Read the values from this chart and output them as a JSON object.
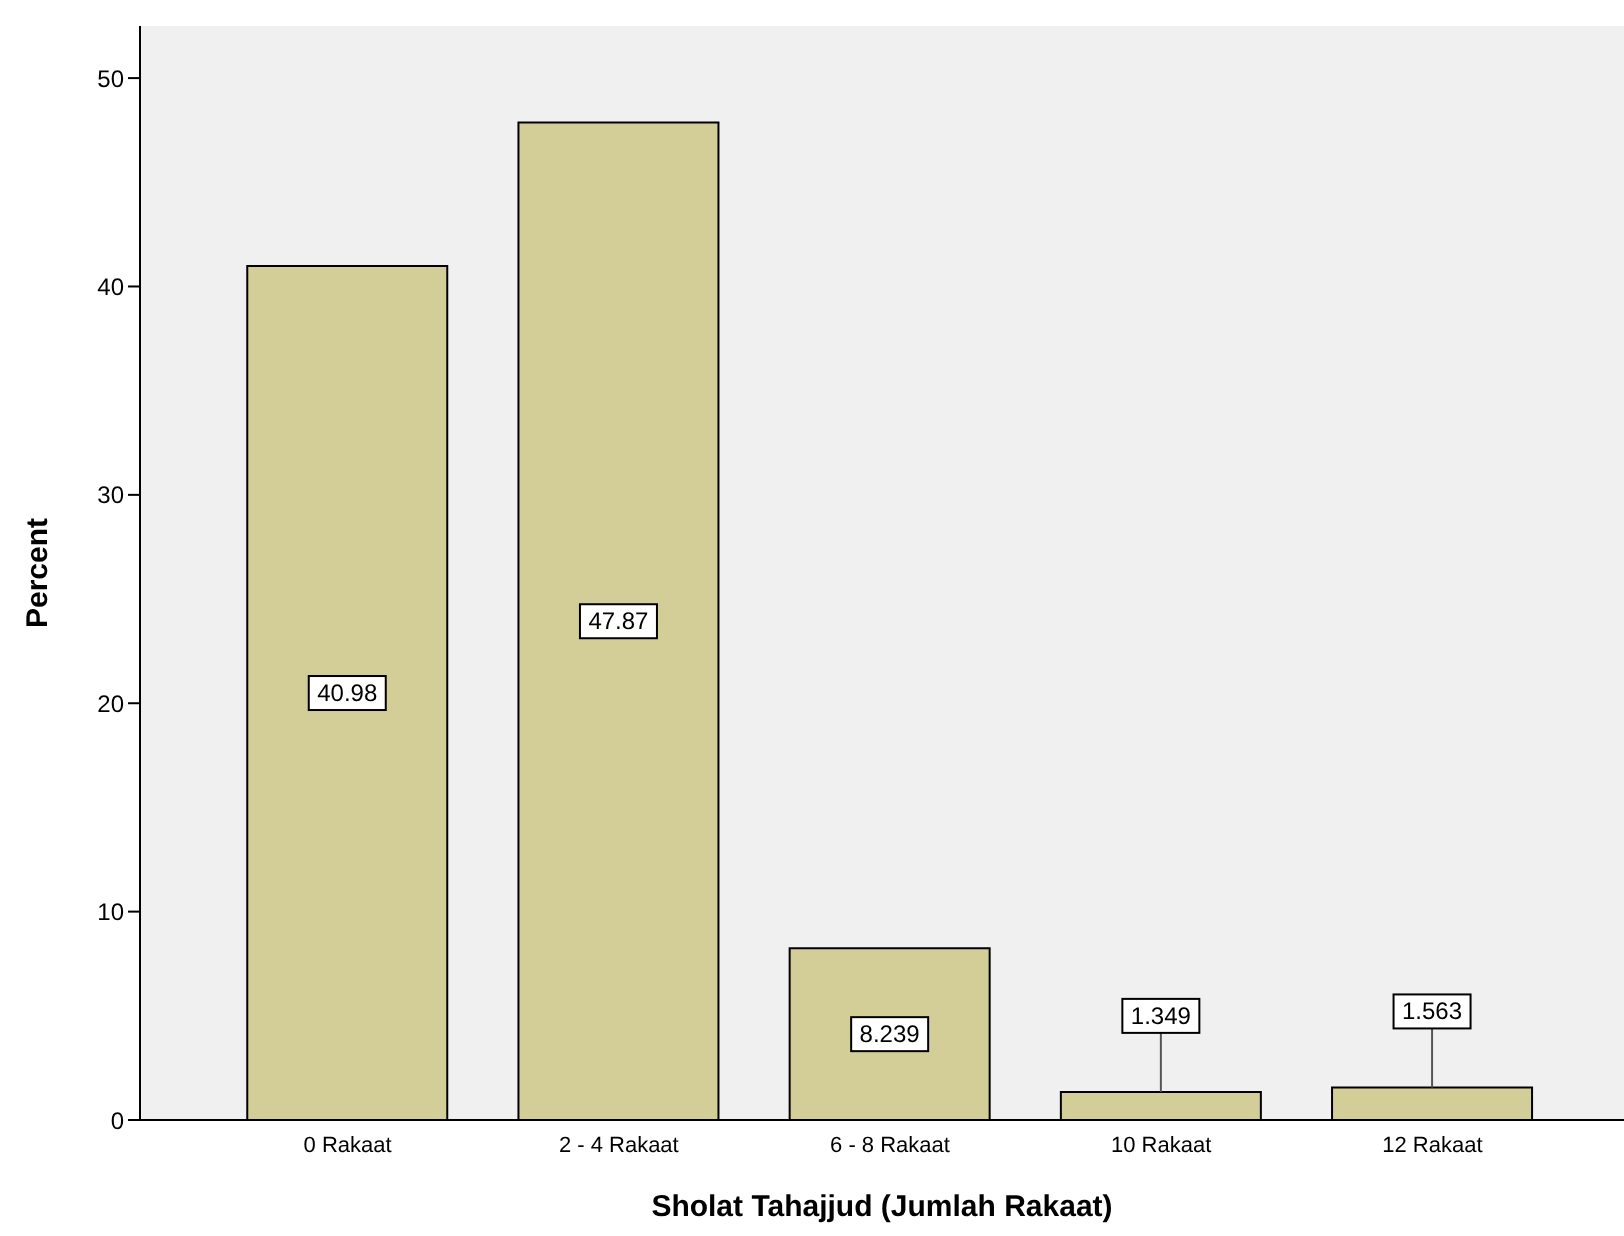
{
  "chart_data": {
    "type": "bar",
    "xlabel": "Sholat Tahajjud (Jumlah Rakaat)",
    "ylabel": "Percent",
    "categories": [
      "0 Rakaat",
      "2 - 4 Rakaat",
      "6 - 8 Rakaat",
      "10 Rakaat",
      "12 Rakaat"
    ],
    "values": [
      40.98,
      47.87,
      8.239,
      1.349,
      1.563
    ],
    "color": "#d3ce97",
    "ylim": [
      0,
      52.5
    ],
    "yticks": [
      0,
      10,
      20,
      30,
      40,
      50
    ],
    "grid": false,
    "value_labels": [
      "40.98",
      "47.87",
      "8.239",
      "1.349",
      "1.563"
    ]
  }
}
